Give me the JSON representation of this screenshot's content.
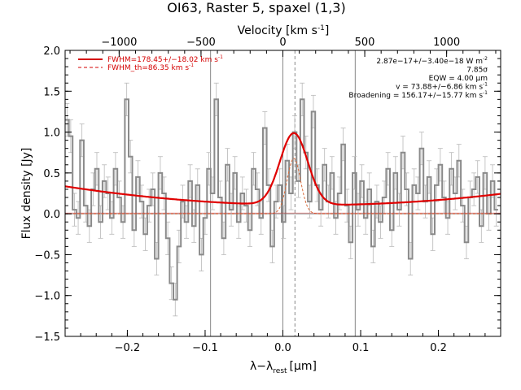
{
  "chart_data": {
    "type": "line",
    "title": "OI63, Raster 5, spaxel (1,3)",
    "xlabel": "λ−λ",
    "xlabel_sub": "rest",
    "xlabel_unit": "[μm]",
    "ylabel": "Flux density [Jy]",
    "x2label": "Velocity [km s",
    "x2label_sup": "-1",
    "x2label_end": "]",
    "xlim": [
      -0.28,
      0.28
    ],
    "ylim": [
      -1.5,
      2.0
    ],
    "x2lim": [
      -1330,
      1330
    ],
    "x_ticks": [
      -0.2,
      -0.1,
      0.0,
      0.1,
      0.2
    ],
    "x_tick_labels": [
      "−0.2",
      "−0.1",
      "0.0",
      "0.1",
      "0.2"
    ],
    "y_ticks": [
      -1.5,
      -1.0,
      -0.5,
      0.0,
      0.5,
      1.0,
      1.5,
      2.0
    ],
    "y_tick_labels": [
      "−1.5",
      "−1.0",
      "−0.5",
      "0.0",
      "0.5",
      "1.0",
      "1.5",
      "2.0"
    ],
    "x2_ticks": [
      -1000,
      -500,
      0,
      500,
      1000
    ],
    "x2_tick_labels": [
      "−1000",
      "−500",
      "0",
      "500",
      "1000"
    ],
    "vertical_lines": [
      {
        "x": -0.093,
        "style": "solid",
        "color": "#888888"
      },
      {
        "x": 0.0,
        "style": "solid",
        "color": "#888888"
      },
      {
        "x": 0.093,
        "style": "solid",
        "color": "#888888"
      },
      {
        "x": 0.0155,
        "style": "dashed",
        "color": "#888888"
      }
    ],
    "zero_line": 0.0,
    "legend_position": "top-left",
    "legend": [
      {
        "label": "FWHM=178.45+/−18.02 km s",
        "sup": "-1",
        "color": "#d40000",
        "style": "solid"
      },
      {
        "label": "FWHM_th=86.35 km s",
        "sup": "-1",
        "color": "#d40000",
        "style": "dashed"
      }
    ],
    "annotations": [
      {
        "text": "2.87e−17+/−3.40e−18 W m",
        "sup": "-2"
      },
      {
        "text": "7.85σ",
        "sup": ""
      },
      {
        "text": "EQW = 4.00 μm",
        "sup": ""
      },
      {
        "text": "v = 73.88+/−6.86 km s",
        "sup": "-1"
      },
      {
        "text": "Broadening = 156.17+/−15.77 km s",
        "sup": "-1"
      }
    ],
    "series": [
      {
        "name": "spectrum",
        "kind": "step",
        "color": "#8a8a8a",
        "x": [
          -0.28,
          -0.2752,
          -0.2704,
          -0.2656,
          -0.2608,
          -0.256,
          -0.2512,
          -0.2464,
          -0.2416,
          -0.2368,
          -0.232,
          -0.2272,
          -0.2224,
          -0.2176,
          -0.2128,
          -0.208,
          -0.2032,
          -0.1984,
          -0.1936,
          -0.1888,
          -0.184,
          -0.1792,
          -0.1744,
          -0.1696,
          -0.1648,
          -0.16,
          -0.1552,
          -0.1504,
          -0.1456,
          -0.1408,
          -0.136,
          -0.1312,
          -0.1264,
          -0.1216,
          -0.1168,
          -0.112,
          -0.1072,
          -0.1024,
          -0.0976,
          -0.0928,
          -0.088,
          -0.0832,
          -0.0784,
          -0.0736,
          -0.0688,
          -0.064,
          -0.0592,
          -0.0544,
          -0.0496,
          -0.0448,
          -0.04,
          -0.0352,
          -0.0304,
          -0.0256,
          -0.0208,
          -0.016,
          -0.0112,
          -0.0064,
          -0.0016,
          0.0032,
          0.008,
          0.0128,
          0.0176,
          0.0224,
          0.0272,
          0.032,
          0.0368,
          0.0416,
          0.0464,
          0.0512,
          0.056,
          0.0608,
          0.0656,
          0.0704,
          0.0752,
          0.08,
          0.0848,
          0.0896,
          0.0944,
          0.0992,
          0.104,
          0.1088,
          0.1136,
          0.1184,
          0.1232,
          0.128,
          0.1328,
          0.1376,
          0.1424,
          0.1472,
          0.152,
          0.1568,
          0.1616,
          0.1664,
          0.1712,
          0.176,
          0.1808,
          0.1856,
          0.1904,
          0.1952,
          0.2,
          0.2048,
          0.2096,
          0.2144,
          0.2192,
          0.224,
          0.2288,
          0.2336,
          0.2384,
          0.2432,
          0.248,
          0.2528,
          0.2576,
          0.2624,
          0.2672,
          0.272
        ],
        "y": [
          1.15,
          0.95,
          0.05,
          -0.05,
          0.9,
          0.1,
          -0.15,
          0.3,
          0.55,
          -0.1,
          0.4,
          0.25,
          -0.05,
          0.55,
          0.2,
          -0.1,
          1.4,
          0.7,
          -0.2,
          0.45,
          0.15,
          -0.25,
          0.1,
          0.3,
          -0.55,
          0.5,
          0.25,
          -0.3,
          -0.85,
          -1.05,
          -0.4,
          0.15,
          -0.1,
          0.4,
          -0.15,
          0.35,
          -0.5,
          -0.05,
          0.55,
          0.25,
          1.4,
          0.2,
          -0.3,
          0.6,
          0.05,
          0.5,
          -0.1,
          0.25,
          0.1,
          -0.2,
          0.55,
          0.3,
          -0.05,
          1.05,
          0.35,
          -0.4,
          0.15,
          0.35,
          -0.1,
          0.65,
          0.25,
          1.0,
          0.4,
          1.4,
          0.75,
          0.15,
          1.25,
          0.35,
          0.05,
          0.6,
          0.15,
          0.5,
          -0.05,
          0.25,
          0.85,
          0.1,
          -0.35,
          0.5,
          0.05,
          0.4,
          -0.05,
          0.3,
          -0.4,
          0.15,
          -0.1,
          0.2,
          0.55,
          -0.2,
          0.5,
          0.05,
          0.75,
          0.3,
          -0.55,
          0.35,
          0.25,
          0.8,
          0.15,
          0.45,
          -0.25,
          0.35,
          0.6,
          0.2,
          -0.05,
          0.55,
          0.25,
          0.65,
          0.1,
          -0.35,
          0.2,
          0.3,
          0.45,
          -0.15,
          0.5,
          0.0,
          0.4,
          0.05
        ],
        "error": 0.2
      },
      {
        "name": "gaussian fit",
        "kind": "line",
        "color": "#e00000",
        "model": {
          "amplitude": 0.88,
          "center": 0.0141,
          "fwhm": 0.042,
          "baseline": [
            0.11,
            -0.165,
            2.3
          ]
        }
      },
      {
        "name": "thermal gaussian",
        "kind": "dashed",
        "color": "#d86a3a",
        "model": {
          "amplitude": 0.68,
          "center": 0.0141,
          "fwhm": 0.0203,
          "baseline": [
            0.0,
            0.0,
            0.0
          ]
        }
      }
    ]
  }
}
